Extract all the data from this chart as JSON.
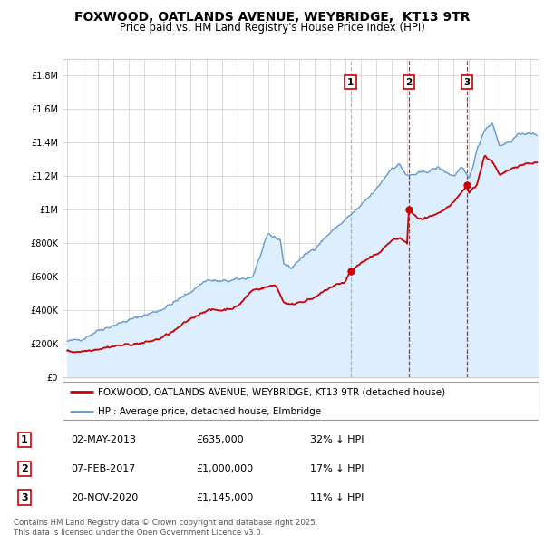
{
  "title": "FOXWOOD, OATLANDS AVENUE, WEYBRIDGE,  KT13 9TR",
  "subtitle": "Price paid vs. HM Land Registry's House Price Index (HPI)",
  "legend_label_red": "FOXWOOD, OATLANDS AVENUE, WEYBRIDGE, KT13 9TR (detached house)",
  "legend_label_blue": "HPI: Average price, detached house, Elmbridge",
  "footnote": "Contains HM Land Registry data © Crown copyright and database right 2025.\nThis data is licensed under the Open Government Licence v3.0.",
  "sale_markers": [
    {
      "label": "1",
      "date": "02-MAY-2013",
      "price": "£635,000",
      "hpi_note": "32% ↓ HPI",
      "x_year": 2013.33,
      "line_color": "#aaaaaa"
    },
    {
      "label": "2",
      "date": "07-FEB-2017",
      "price": "£1,000,000",
      "hpi_note": "17% ↓ HPI",
      "x_year": 2017.1,
      "line_color": "#cc0000"
    },
    {
      "label": "3",
      "date": "20-NOV-2020",
      "price": "£1,145,000",
      "hpi_note": "11% ↓ HPI",
      "x_year": 2020.88,
      "line_color": "#cc0000"
    }
  ],
  "sale_prices": [
    635000,
    1000000,
    1145000
  ],
  "ylim": [
    0,
    1900000
  ],
  "yticks": [
    0,
    200000,
    400000,
    600000,
    800000,
    1000000,
    1200000,
    1400000,
    1600000,
    1800000
  ],
  "xlim_start": 1994.7,
  "xlim_end": 2025.5,
  "red_color": "#cc0000",
  "blue_color": "#6699cc",
  "blue_fill_color": "#ddeeff",
  "grid_color": "#cccccc",
  "background_color": "#ffffff",
  "row_data": [
    [
      "1",
      "02-MAY-2013",
      "£635,000",
      "32% ↓ HPI"
    ],
    [
      "2",
      "07-FEB-2017",
      "£1,000,000",
      "17% ↓ HPI"
    ],
    [
      "3",
      "20-NOV-2020",
      "£1,145,000",
      "11% ↓ HPI"
    ]
  ]
}
